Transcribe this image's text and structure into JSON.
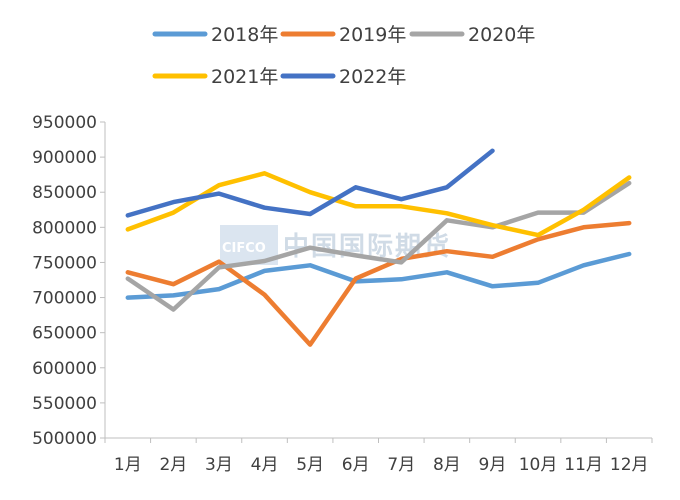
{
  "chart_data": {
    "type": "line",
    "categories": [
      "1月",
      "2月",
      "3月",
      "4月",
      "5月",
      "6月",
      "7月",
      "8月",
      "9月",
      "10月",
      "11月",
      "12月"
    ],
    "ylim": [
      500000,
      950000
    ],
    "yticks": [
      "500000",
      "550000",
      "600000",
      "650000",
      "700000",
      "750000",
      "800000",
      "850000",
      "900000",
      "950000"
    ],
    "series": [
      {
        "name": "2018年",
        "color": "#5b9bd5",
        "values": [
          700000,
          703000,
          712000,
          738000,
          746000,
          723000,
          726000,
          736000,
          716000,
          721000,
          746000,
          762000
        ]
      },
      {
        "name": "2019年",
        "color": "#ed7d31",
        "values": [
          736000,
          719000,
          751000,
          704000,
          633000,
          727000,
          755000,
          766000,
          758000,
          783000,
          800000,
          806000
        ]
      },
      {
        "name": "2020年",
        "color": "#a5a5a5",
        "values": [
          727000,
          683000,
          743000,
          752000,
          771000,
          760000,
          750000,
          810000,
          800000,
          821000,
          821000,
          863000
        ]
      },
      {
        "name": "2021年",
        "color": "#ffc000",
        "values": [
          797000,
          821000,
          860000,
          877000,
          850000,
          830000,
          830000,
          820000,
          803000,
          789000,
          825000,
          871000
        ]
      },
      {
        "name": "2022年",
        "color": "#4472c4",
        "values": [
          817000,
          836000,
          848000,
          828000,
          819000,
          857000,
          840000,
          857000,
          909000,
          null,
          null,
          null
        ]
      }
    ],
    "title": "",
    "xlabel": "",
    "ylabel": ""
  },
  "watermark": {
    "logo": "CIFCO",
    "text": "中国国际期货"
  }
}
